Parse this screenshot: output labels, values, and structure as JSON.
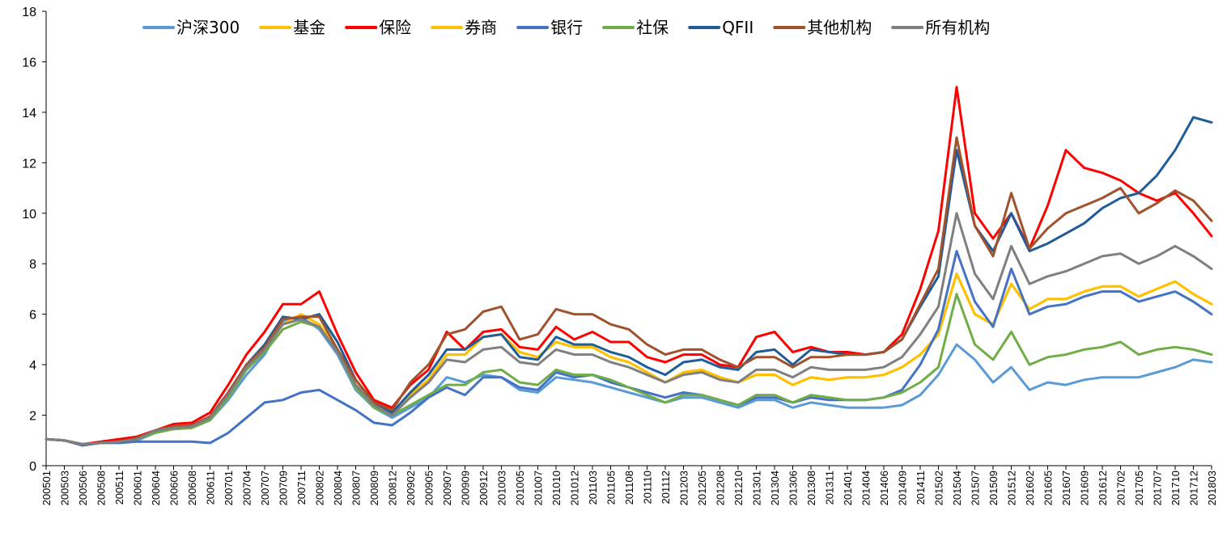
{
  "chart_data": {
    "type": "line",
    "title": "",
    "xlabel": "",
    "ylabel": "",
    "ylim": [
      0,
      18
    ],
    "yticks": [
      0,
      2,
      4,
      6,
      8,
      10,
      12,
      14,
      16,
      18
    ],
    "grid": false,
    "legend_position": "top",
    "categories": [
      "200501",
      "200503",
      "200506",
      "200508",
      "200511",
      "200601",
      "200604",
      "200606",
      "200608",
      "200611",
      "200701",
      "200704",
      "200707",
      "200709",
      "200711",
      "200802",
      "200804",
      "200807",
      "200809",
      "200812",
      "200902",
      "200905",
      "200907",
      "200909",
      "200912",
      "201003",
      "201005",
      "201007",
      "201010",
      "201012",
      "201103",
      "201105",
      "201108",
      "201110",
      "201112",
      "201203",
      "201205",
      "201208",
      "201210",
      "201301",
      "201304",
      "201306",
      "201308",
      "201311",
      "201401",
      "201404",
      "201406",
      "201409",
      "201411",
      "201502",
      "201504",
      "201507",
      "201509",
      "201512",
      "201602",
      "201605",
      "201607",
      "201609",
      "201612",
      "201702",
      "201705",
      "201707",
      "201710",
      "201712",
      "201803"
    ],
    "series": [
      {
        "name": "沪深300",
        "color": "#5B9BD5",
        "width": 3,
        "values": [
          1.05,
          1.0,
          0.85,
          0.9,
          0.95,
          1.0,
          1.3,
          1.45,
          1.5,
          1.8,
          2.6,
          3.6,
          4.4,
          5.7,
          5.9,
          5.4,
          4.4,
          3.0,
          2.3,
          1.9,
          2.3,
          2.7,
          3.5,
          3.3,
          3.6,
          3.5,
          3.0,
          2.9,
          3.5,
          3.4,
          3.3,
          3.1,
          2.9,
          2.7,
          2.5,
          2.7,
          2.7,
          2.5,
          2.3,
          2.6,
          2.6,
          2.3,
          2.5,
          2.4,
          2.3,
          2.3,
          2.3,
          2.4,
          2.8,
          3.6,
          4.8,
          4.2,
          3.3,
          3.9,
          3.0,
          3.3,
          3.2,
          3.4,
          3.5,
          3.5,
          3.5,
          3.7,
          3.9,
          4.2,
          4.1
        ]
      },
      {
        "name": "基金",
        "color": "#FFC000",
        "width": 3,
        "values": [
          1.05,
          1.0,
          0.85,
          0.9,
          0.95,
          1.05,
          1.4,
          1.55,
          1.6,
          1.9,
          2.8,
          3.8,
          4.6,
          5.6,
          6.0,
          5.6,
          4.6,
          3.2,
          2.5,
          2.1,
          2.8,
          3.4,
          4.4,
          4.4,
          5.1,
          5.2,
          4.5,
          4.3,
          4.9,
          4.7,
          4.7,
          4.3,
          4.1,
          3.7,
          3.3,
          3.7,
          3.8,
          3.5,
          3.3,
          3.6,
          3.6,
          3.2,
          3.5,
          3.4,
          3.5,
          3.5,
          3.6,
          3.9,
          4.4,
          5.2,
          7.6,
          6.0,
          5.6,
          7.2,
          6.2,
          6.6,
          6.6,
          6.9,
          7.1,
          7.1,
          6.7,
          7.0,
          7.3,
          6.8,
          6.4
        ]
      },
      {
        "name": "保险",
        "color": "#FF0000",
        "width": 3,
        "values": [
          1.05,
          1.0,
          0.85,
          0.95,
          1.05,
          1.15,
          1.4,
          1.65,
          1.7,
          2.1,
          3.2,
          4.4,
          5.3,
          6.4,
          6.4,
          6.9,
          5.2,
          3.7,
          2.6,
          2.3,
          3.2,
          3.8,
          5.3,
          4.6,
          5.3,
          5.4,
          4.7,
          4.6,
          5.5,
          5.0,
          5.3,
          4.9,
          4.9,
          4.3,
          4.1,
          4.4,
          4.4,
          4.0,
          3.9,
          5.1,
          5.3,
          4.5,
          4.7,
          4.5,
          4.5,
          4.4,
          4.5,
          5.2,
          7.0,
          9.3,
          15.0,
          10.0,
          9.0,
          10.0,
          8.6,
          10.3,
          12.5,
          11.8,
          11.6,
          11.3,
          10.8,
          10.5,
          10.8,
          10.0,
          9.1
        ]
      },
      {
        "name": "券商",
        "color": "#FFC000",
        "width": 3,
        "values": [
          1.05,
          1.0,
          0.85,
          0.9,
          0.95,
          1.05,
          1.4,
          1.55,
          1.6,
          1.9,
          2.8,
          3.8,
          4.6,
          5.6,
          6.0,
          5.6,
          4.6,
          3.2,
          2.5,
          2.1,
          2.8,
          3.4,
          4.4,
          4.4,
          5.1,
          5.2,
          4.5,
          4.3,
          4.9,
          4.7,
          4.7,
          4.3,
          4.1,
          3.7,
          3.3,
          3.7,
          3.8,
          3.5,
          3.3,
          3.6,
          3.6,
          3.2,
          3.5,
          3.4,
          3.5,
          3.5,
          3.6,
          3.9,
          4.4,
          5.2,
          7.6,
          6.0,
          5.6,
          7.2,
          6.2,
          6.6,
          6.6,
          6.9,
          7.1,
          7.1,
          6.7,
          7.0,
          7.3,
          6.8,
          6.4
        ]
      },
      {
        "name": "银行",
        "color": "#4472C4",
        "width": 3,
        "values": [
          1.05,
          1.0,
          0.8,
          0.9,
          0.9,
          0.95,
          0.95,
          0.95,
          0.95,
          0.9,
          1.3,
          1.9,
          2.5,
          2.6,
          2.9,
          3.0,
          2.6,
          2.2,
          1.7,
          1.6,
          2.1,
          2.7,
          3.1,
          2.8,
          3.5,
          3.5,
          3.1,
          3.0,
          3.7,
          3.5,
          3.6,
          3.3,
          3.1,
          2.9,
          2.7,
          2.9,
          2.8,
          2.6,
          2.4,
          2.7,
          2.7,
          2.5,
          2.7,
          2.6,
          2.6,
          2.6,
          2.7,
          3.0,
          4.0,
          5.4,
          8.5,
          6.5,
          5.5,
          7.8,
          6.0,
          6.3,
          6.4,
          6.7,
          6.9,
          6.9,
          6.5,
          6.7,
          6.9,
          6.5,
          6.0
        ]
      },
      {
        "name": "社保",
        "color": "#70AD47",
        "width": 3,
        "values": [
          1.05,
          1.0,
          0.85,
          0.9,
          0.95,
          1.05,
          1.3,
          1.45,
          1.5,
          1.8,
          2.7,
          3.8,
          4.5,
          5.4,
          5.7,
          5.5,
          4.5,
          3.1,
          2.3,
          2.0,
          2.4,
          2.8,
          3.2,
          3.2,
          3.7,
          3.8,
          3.3,
          3.2,
          3.8,
          3.6,
          3.6,
          3.4,
          3.1,
          2.8,
          2.5,
          2.8,
          2.8,
          2.6,
          2.4,
          2.8,
          2.8,
          2.5,
          2.8,
          2.7,
          2.6,
          2.6,
          2.7,
          2.9,
          3.3,
          3.9,
          6.8,
          4.8,
          4.2,
          5.3,
          4.0,
          4.3,
          4.4,
          4.6,
          4.7,
          4.9,
          4.4,
          4.6,
          4.7,
          4.6,
          4.4
        ]
      },
      {
        "name": "QFII",
        "color": "#1F5C99",
        "width": 3,
        "values": [
          1.05,
          1.0,
          0.85,
          0.9,
          0.95,
          1.05,
          1.4,
          1.5,
          1.6,
          1.9,
          2.9,
          4.0,
          4.8,
          5.9,
          5.8,
          6.0,
          4.9,
          3.4,
          2.5,
          2.1,
          2.9,
          3.6,
          4.6,
          4.6,
          5.1,
          5.2,
          4.3,
          4.2,
          5.1,
          4.8,
          4.8,
          4.5,
          4.3,
          3.9,
          3.6,
          4.1,
          4.2,
          3.9,
          3.8,
          4.5,
          4.6,
          4.0,
          4.6,
          4.5,
          4.4,
          4.4,
          4.5,
          5.0,
          6.3,
          7.5,
          12.5,
          9.5,
          8.5,
          10.0,
          8.5,
          8.8,
          9.2,
          9.6,
          10.2,
          10.6,
          10.8,
          11.5,
          12.5,
          13.8,
          13.6
        ]
      },
      {
        "name": "其他机构",
        "color": "#A0522D",
        "width": 3,
        "values": [
          1.05,
          1.0,
          0.85,
          0.9,
          0.95,
          1.1,
          1.4,
          1.55,
          1.6,
          1.95,
          2.9,
          4.0,
          4.7,
          5.8,
          5.9,
          5.9,
          4.6,
          3.4,
          2.5,
          2.2,
          3.3,
          4.0,
          5.2,
          5.4,
          6.1,
          6.3,
          5.0,
          5.2,
          6.2,
          6.0,
          6.0,
          5.6,
          5.4,
          4.8,
          4.4,
          4.6,
          4.6,
          4.2,
          3.9,
          4.3,
          4.3,
          3.9,
          4.3,
          4.3,
          4.4,
          4.4,
          4.5,
          5.0,
          6.4,
          7.8,
          13.0,
          9.5,
          8.3,
          10.8,
          8.6,
          9.4,
          10.0,
          10.3,
          10.6,
          11.0,
          10.0,
          10.4,
          10.9,
          10.5,
          9.7
        ]
      },
      {
        "name": "所有机构",
        "color": "#7F7F7F",
        "width": 3,
        "values": [
          1.05,
          1.0,
          0.85,
          0.9,
          0.95,
          1.05,
          1.4,
          1.5,
          1.55,
          1.9,
          2.8,
          3.9,
          4.6,
          5.6,
          5.8,
          5.5,
          4.5,
          3.2,
          2.4,
          2.0,
          2.7,
          3.3,
          4.2,
          4.1,
          4.6,
          4.7,
          4.1,
          4.0,
          4.6,
          4.4,
          4.4,
          4.1,
          3.9,
          3.6,
          3.3,
          3.6,
          3.7,
          3.4,
          3.3,
          3.8,
          3.8,
          3.5,
          3.9,
          3.8,
          3.8,
          3.8,
          3.9,
          4.3,
          5.2,
          6.3,
          10.0,
          7.6,
          6.6,
          8.7,
          7.2,
          7.5,
          7.7,
          8.0,
          8.3,
          8.4,
          8.0,
          8.3,
          8.7,
          8.3,
          7.8
        ]
      }
    ]
  }
}
